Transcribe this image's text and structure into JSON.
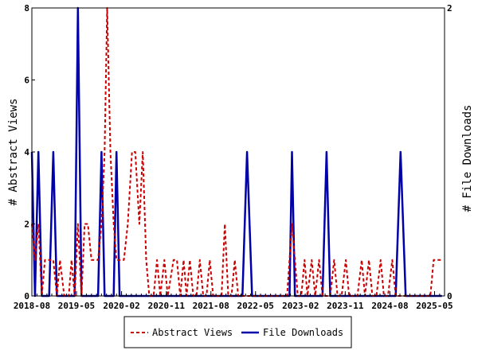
{
  "chart_data": {
    "type": "line",
    "x_tick_labels": [
      "2018-08",
      "2019-05",
      "2020-02",
      "2020-11",
      "2021-08",
      "2022-05",
      "2023-02",
      "2023-11",
      "2024-08",
      "2025-05"
    ],
    "x_range": [
      "2018-08",
      "2025-07"
    ],
    "ylabel_left": "# Abstract Views",
    "ylabel_right": "# File Downloads",
    "ylim_left": [
      0,
      8
    ],
    "ylim_right": [
      0,
      2
    ],
    "yticks_left": [
      "0",
      "2",
      "4",
      "6",
      "8"
    ],
    "yticks_right": [
      "0",
      "2"
    ],
    "grid": false,
    "legend_position": "bottom-center",
    "series": [
      {
        "name": "Abstract Views",
        "axis": "left",
        "color": "#cc0000",
        "style": "dashed",
        "points": [
          [
            "2018-08-01",
            2
          ],
          [
            "2018-08-20",
            1
          ],
          [
            "2018-09-10",
            2
          ],
          [
            "2018-10-01",
            0
          ],
          [
            "2018-10-20",
            1
          ],
          [
            "2018-11-15",
            1
          ],
          [
            "2018-12-10",
            1
          ],
          [
            "2019-01-01",
            0
          ],
          [
            "2019-01-20",
            1
          ],
          [
            "2019-02-15",
            0
          ],
          [
            "2019-03-15",
            0
          ],
          [
            "2019-04-01",
            1
          ],
          [
            "2019-04-20",
            0
          ],
          [
            "2019-05-10",
            2
          ],
          [
            "2019-06-01",
            0
          ],
          [
            "2019-06-20",
            2
          ],
          [
            "2019-07-10",
            2
          ],
          [
            "2019-08-01",
            1
          ],
          [
            "2019-08-20",
            1
          ],
          [
            "2019-09-10",
            1
          ],
          [
            "2019-10-01",
            2
          ],
          [
            "2019-10-20",
            4
          ],
          [
            "2019-11-05",
            8
          ],
          [
            "2019-11-25",
            4
          ],
          [
            "2019-12-15",
            2
          ],
          [
            "2020-01-01",
            1
          ],
          [
            "2020-01-20",
            1
          ],
          [
            "2020-02-15",
            1
          ],
          [
            "2020-03-10",
            2
          ],
          [
            "2020-04-05",
            4
          ],
          [
            "2020-04-25",
            4
          ],
          [
            "2020-05-20",
            2
          ],
          [
            "2020-06-10",
            4
          ],
          [
            "2020-07-01",
            1
          ],
          [
            "2020-07-20",
            0
          ],
          [
            "2020-08-15",
            0
          ],
          [
            "2020-09-05",
            1
          ],
          [
            "2020-09-25",
            0
          ],
          [
            "2020-10-20",
            1
          ],
          [
            "2020-11-10",
            0
          ],
          [
            "2020-12-15",
            1
          ],
          [
            "2021-01-05",
            1
          ],
          [
            "2021-01-25",
            0
          ],
          [
            "2021-02-15",
            1
          ],
          [
            "2021-03-05",
            0
          ],
          [
            "2021-03-25",
            1
          ],
          [
            "2021-04-15",
            0
          ],
          [
            "2021-05-05",
            0
          ],
          [
            "2021-05-25",
            1
          ],
          [
            "2021-06-15",
            0
          ],
          [
            "2021-07-05",
            0
          ],
          [
            "2021-07-25",
            1
          ],
          [
            "2021-08-15",
            0
          ],
          [
            "2021-09-05",
            0
          ],
          [
            "2021-10-05",
            0
          ],
          [
            "2021-10-25",
            2
          ],
          [
            "2021-11-15",
            0
          ],
          [
            "2021-12-05",
            0
          ],
          [
            "2021-12-25",
            1
          ],
          [
            "2022-01-15",
            0
          ],
          [
            "2022-02-10",
            0
          ],
          [
            "2022-03-10",
            0
          ],
          [
            "2022-04-10",
            0
          ],
          [
            "2022-05-10",
            0
          ],
          [
            "2022-06-10",
            0
          ],
          [
            "2022-07-10",
            0
          ],
          [
            "2022-08-10",
            0
          ],
          [
            "2022-09-10",
            0
          ],
          [
            "2022-10-10",
            0
          ],
          [
            "2022-11-10",
            0
          ],
          [
            "2022-11-25",
            1
          ],
          [
            "2022-12-10",
            2
          ],
          [
            "2022-12-28",
            1
          ],
          [
            "2023-01-15",
            0
          ],
          [
            "2023-02-05",
            0
          ],
          [
            "2023-02-25",
            1
          ],
          [
            "2023-03-15",
            0
          ],
          [
            "2023-04-10",
            1
          ],
          [
            "2023-05-01",
            0
          ],
          [
            "2023-05-25",
            1
          ],
          [
            "2023-06-15",
            0
          ],
          [
            "2023-07-10",
            0
          ],
          [
            "2023-08-01",
            0
          ],
          [
            "2023-08-25",
            1
          ],
          [
            "2023-09-15",
            0
          ],
          [
            "2023-10-10",
            0
          ],
          [
            "2023-11-05",
            1
          ],
          [
            "2023-11-25",
            0
          ],
          [
            "2023-12-20",
            0
          ],
          [
            "2024-01-15",
            0
          ],
          [
            "2024-02-10",
            1
          ],
          [
            "2024-03-01",
            0
          ],
          [
            "2024-03-25",
            1
          ],
          [
            "2024-04-15",
            0
          ],
          [
            "2024-05-10",
            0
          ],
          [
            "2024-06-05",
            1
          ],
          [
            "2024-06-25",
            0
          ],
          [
            "2024-07-20",
            0
          ],
          [
            "2024-08-15",
            1
          ],
          [
            "2024-09-05",
            0
          ],
          [
            "2024-10-05",
            0
          ],
          [
            "2024-11-05",
            0
          ],
          [
            "2024-12-05",
            0
          ],
          [
            "2025-01-05",
            0
          ],
          [
            "2025-02-05",
            0
          ],
          [
            "2025-03-05",
            0
          ],
          [
            "2025-04-05",
            0
          ],
          [
            "2025-04-25",
            1
          ],
          [
            "2025-05-20",
            1
          ],
          [
            "2025-06-15",
            1
          ]
        ]
      },
      {
        "name": "File Downloads",
        "axis": "right",
        "color": "#0000aa",
        "style": "solid",
        "points": [
          [
            "2018-08-01",
            1
          ],
          [
            "2018-08-20",
            0
          ],
          [
            "2018-09-10",
            1
          ],
          [
            "2018-10-01",
            0
          ],
          [
            "2018-10-20",
            0
          ],
          [
            "2018-11-15",
            0
          ],
          [
            "2018-12-10",
            1
          ],
          [
            "2019-01-01",
            0
          ],
          [
            "2019-01-20",
            0
          ],
          [
            "2019-02-15",
            0
          ],
          [
            "2019-03-15",
            0
          ],
          [
            "2019-04-01",
            0
          ],
          [
            "2019-04-20",
            0
          ],
          [
            "2019-05-10",
            2
          ],
          [
            "2019-06-01",
            0
          ],
          [
            "2019-06-20",
            0
          ],
          [
            "2019-07-10",
            0
          ],
          [
            "2019-08-01",
            0
          ],
          [
            "2019-08-20",
            0
          ],
          [
            "2019-09-10",
            0
          ],
          [
            "2019-10-01",
            1
          ],
          [
            "2019-10-20",
            0
          ],
          [
            "2019-11-05",
            0
          ],
          [
            "2019-11-25",
            0
          ],
          [
            "2019-12-15",
            0
          ],
          [
            "2020-01-01",
            1
          ],
          [
            "2020-01-20",
            0
          ],
          [
            "2020-02-15",
            0
          ],
          [
            "2020-03-10",
            0
          ],
          [
            "2020-04-05",
            0
          ],
          [
            "2020-04-25",
            0
          ],
          [
            "2020-05-20",
            0
          ],
          [
            "2020-06-10",
            0
          ],
          [
            "2020-07-01",
            0
          ],
          [
            "2020-07-20",
            0
          ],
          [
            "2020-08-15",
            0
          ],
          [
            "2020-09-05",
            0
          ],
          [
            "2020-09-25",
            0
          ],
          [
            "2020-10-20",
            0
          ],
          [
            "2020-11-10",
            0
          ],
          [
            "2020-12-15",
            0
          ],
          [
            "2021-01-05",
            0
          ],
          [
            "2021-01-25",
            0
          ],
          [
            "2021-02-15",
            0
          ],
          [
            "2021-03-05",
            0
          ],
          [
            "2021-03-25",
            0
          ],
          [
            "2021-04-15",
            0
          ],
          [
            "2021-05-05",
            0
          ],
          [
            "2021-05-25",
            0
          ],
          [
            "2021-06-15",
            0
          ],
          [
            "2021-07-05",
            0
          ],
          [
            "2021-07-25",
            0
          ],
          [
            "2021-08-15",
            0
          ],
          [
            "2021-09-05",
            0
          ],
          [
            "2021-10-05",
            0
          ],
          [
            "2021-10-25",
            0
          ],
          [
            "2021-11-15",
            0
          ],
          [
            "2021-12-05",
            0
          ],
          [
            "2021-12-25",
            0
          ],
          [
            "2022-01-15",
            0
          ],
          [
            "2022-02-10",
            0
          ],
          [
            "2022-03-10",
            1
          ],
          [
            "2022-04-10",
            0
          ],
          [
            "2022-05-10",
            0
          ],
          [
            "2022-06-10",
            0
          ],
          [
            "2022-07-10",
            0
          ],
          [
            "2022-08-10",
            0
          ],
          [
            "2022-09-10",
            0
          ],
          [
            "2022-10-10",
            0
          ],
          [
            "2022-11-10",
            0
          ],
          [
            "2022-11-25",
            0
          ],
          [
            "2022-12-10",
            1
          ],
          [
            "2022-12-28",
            0
          ],
          [
            "2023-01-15",
            0
          ],
          [
            "2023-02-05",
            0
          ],
          [
            "2023-02-25",
            0
          ],
          [
            "2023-03-15",
            0
          ],
          [
            "2023-04-10",
            0
          ],
          [
            "2023-05-01",
            0
          ],
          [
            "2023-05-25",
            0
          ],
          [
            "2023-06-15",
            0
          ],
          [
            "2023-07-10",
            1
          ],
          [
            "2023-08-01",
            0
          ],
          [
            "2023-08-25",
            0
          ],
          [
            "2023-09-15",
            0
          ],
          [
            "2023-10-10",
            0
          ],
          [
            "2023-11-05",
            0
          ],
          [
            "2023-11-25",
            0
          ],
          [
            "2023-12-20",
            0
          ],
          [
            "2024-01-15",
            0
          ],
          [
            "2024-02-10",
            0
          ],
          [
            "2024-03-01",
            0
          ],
          [
            "2024-03-25",
            0
          ],
          [
            "2024-04-15",
            0
          ],
          [
            "2024-05-10",
            0
          ],
          [
            "2024-06-05",
            0
          ],
          [
            "2024-06-25",
            0
          ],
          [
            "2024-07-20",
            0
          ],
          [
            "2024-08-15",
            0
          ],
          [
            "2024-09-05",
            0
          ],
          [
            "2024-10-05",
            1
          ],
          [
            "2024-11-05",
            0
          ],
          [
            "2024-12-05",
            0
          ],
          [
            "2025-01-05",
            0
          ],
          [
            "2025-02-05",
            0
          ],
          [
            "2025-03-05",
            0
          ],
          [
            "2025-04-05",
            0
          ],
          [
            "2025-04-25",
            0
          ],
          [
            "2025-05-20",
            0
          ],
          [
            "2025-06-15",
            0
          ]
        ]
      }
    ]
  }
}
